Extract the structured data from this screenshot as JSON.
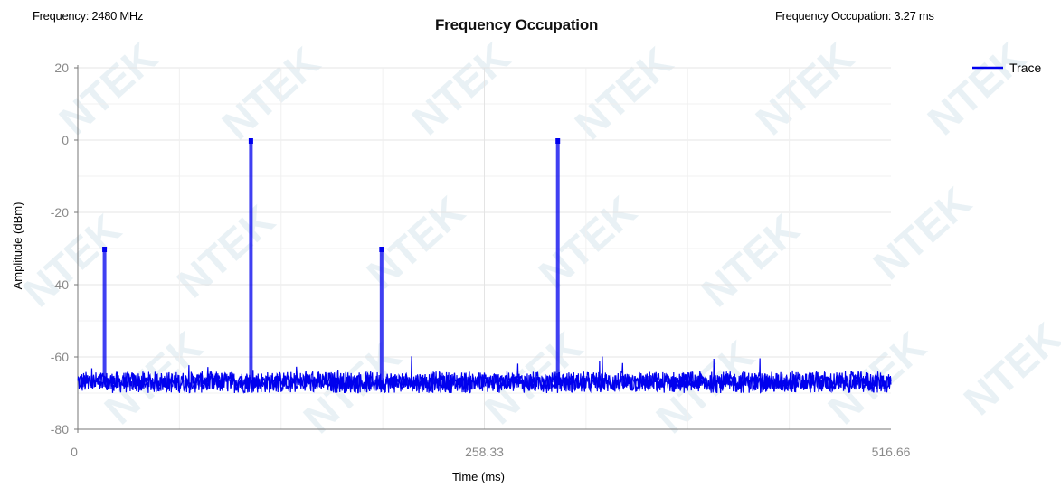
{
  "header": {
    "frequency": "Frequency: 2480 MHz",
    "title": "Frequency Occupation",
    "occupation": "Frequency Occupation: 3.27 ms"
  },
  "watermark": "NTEK",
  "chart_data": {
    "type": "line",
    "title": "Frequency Occupation",
    "xlabel": "Time (ms)",
    "ylabel": "Amplitude (dBm)",
    "xlim": [
      0,
      516.66
    ],
    "ylim": [
      -80,
      20
    ],
    "x_ticks": [
      "0",
      "258.33",
      "516.66"
    ],
    "y_ticks": [
      "20",
      "0",
      "-20",
      "-40",
      "-60",
      "-80"
    ],
    "grid": true,
    "legend": {
      "position": "top-right",
      "entries": [
        "Trace"
      ]
    },
    "series": [
      {
        "name": "Trace",
        "color": "#0000ee",
        "noise_floor_dbm": -67,
        "pulses": [
          {
            "time_ms": 17,
            "peak_dbm": -30
          },
          {
            "time_ms": 110,
            "peak_dbm": 0
          },
          {
            "time_ms": 193,
            "peak_dbm": -30
          },
          {
            "time_ms": 305,
            "peak_dbm": 0
          }
        ]
      }
    ]
  }
}
